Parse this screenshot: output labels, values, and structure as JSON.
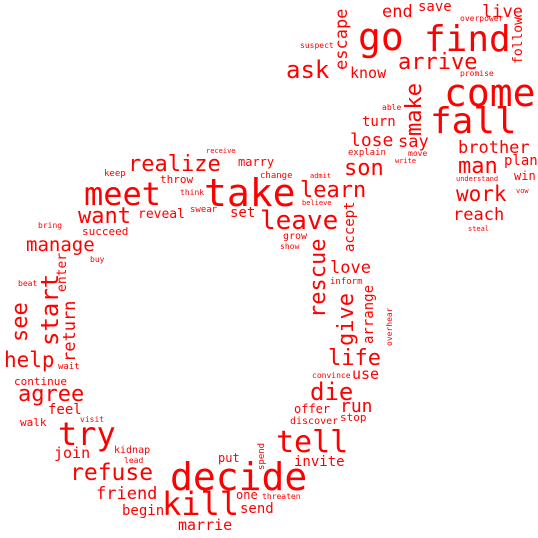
{
  "cloud": {
    "color": "#ff0000",
    "words": [
      {
        "text": "go"
      },
      {
        "text": "find"
      },
      {
        "text": "come"
      },
      {
        "text": "fall"
      },
      {
        "text": "arrive"
      },
      {
        "text": "ask"
      },
      {
        "text": "know"
      },
      {
        "text": "escape"
      },
      {
        "text": "end"
      },
      {
        "text": "save"
      },
      {
        "text": "live"
      },
      {
        "text": "overpower"
      },
      {
        "text": "follow"
      },
      {
        "text": "promise"
      },
      {
        "text": "suspect"
      },
      {
        "text": "make"
      },
      {
        "text": "able"
      },
      {
        "text": "turn"
      },
      {
        "text": "lose"
      },
      {
        "text": "say"
      },
      {
        "text": "explain"
      },
      {
        "text": "move"
      },
      {
        "text": "write"
      },
      {
        "text": "brother"
      },
      {
        "text": "man"
      },
      {
        "text": "plan"
      },
      {
        "text": "understand"
      },
      {
        "text": "win"
      },
      {
        "text": "vow"
      },
      {
        "text": "work"
      },
      {
        "text": "reach"
      },
      {
        "text": "steal"
      },
      {
        "text": "son"
      },
      {
        "text": "learn"
      },
      {
        "text": "leave"
      },
      {
        "text": "accept"
      },
      {
        "text": "admit"
      },
      {
        "text": "believe"
      },
      {
        "text": "grow"
      },
      {
        "text": "show"
      },
      {
        "text": "change"
      },
      {
        "text": "marry"
      },
      {
        "text": "realize"
      },
      {
        "text": "receive"
      },
      {
        "text": "meet"
      },
      {
        "text": "take"
      },
      {
        "text": "keep"
      },
      {
        "text": "throw"
      },
      {
        "text": "think"
      },
      {
        "text": "swear"
      },
      {
        "text": "set"
      },
      {
        "text": "want"
      },
      {
        "text": "reveal"
      },
      {
        "text": "succeed"
      },
      {
        "text": "manage"
      },
      {
        "text": "bring"
      },
      {
        "text": "buy"
      },
      {
        "text": "enter"
      },
      {
        "text": "beat"
      },
      {
        "text": "start"
      },
      {
        "text": "see"
      },
      {
        "text": "return"
      },
      {
        "text": "help"
      },
      {
        "text": "wait"
      },
      {
        "text": "continue"
      },
      {
        "text": "agree"
      },
      {
        "text": "feel"
      },
      {
        "text": "walk"
      },
      {
        "text": "visit"
      },
      {
        "text": "try"
      },
      {
        "text": "join"
      },
      {
        "text": "kidnap"
      },
      {
        "text": "lead"
      },
      {
        "text": "refuse"
      },
      {
        "text": "friend"
      },
      {
        "text": "begin"
      },
      {
        "text": "decide"
      },
      {
        "text": "kill"
      },
      {
        "text": "put"
      },
      {
        "text": "spend"
      },
      {
        "text": "one"
      },
      {
        "text": "threaten"
      },
      {
        "text": "send"
      },
      {
        "text": "marrie"
      },
      {
        "text": "rescue"
      },
      {
        "text": "love"
      },
      {
        "text": "inform"
      },
      {
        "text": "give"
      },
      {
        "text": "arrange"
      },
      {
        "text": "overhear"
      },
      {
        "text": "life"
      },
      {
        "text": "convince"
      },
      {
        "text": "use"
      },
      {
        "text": "die"
      },
      {
        "text": "run"
      },
      {
        "text": "offer"
      },
      {
        "text": "stop"
      },
      {
        "text": "discover"
      },
      {
        "text": "tell"
      },
      {
        "text": "invite"
      }
    ]
  }
}
